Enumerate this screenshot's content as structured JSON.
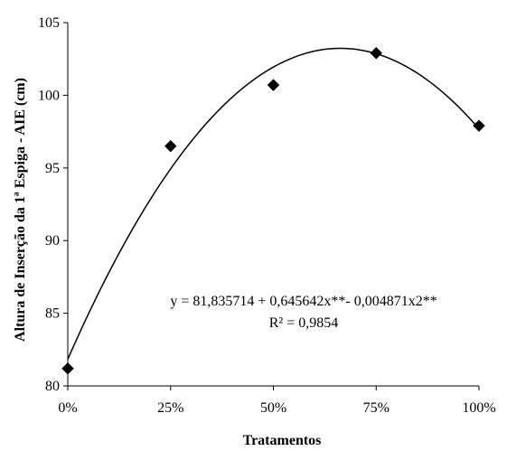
{
  "chart_data": {
    "type": "scatter",
    "xlabel": "Tratamentos",
    "ylabel": "Altura de Inserção da 1ª Espiga - AIE (cm)",
    "x_tick_labels": [
      "0%",
      "25%",
      "50%",
      "75%",
      "100%"
    ],
    "x_ticks": [
      0,
      25,
      50,
      75,
      100
    ],
    "y_ticks": [
      80,
      85,
      90,
      95,
      100,
      105
    ],
    "xlim": [
      0,
      100
    ],
    "ylim": [
      80,
      105
    ],
    "grid": false,
    "points": [
      {
        "x": 0,
        "y": 81.2
      },
      {
        "x": 25,
        "y": 96.5
      },
      {
        "x": 50,
        "y": 100.7
      },
      {
        "x": 75,
        "y": 102.9
      },
      {
        "x": 100,
        "y": 97.9
      }
    ],
    "trendline": {
      "type": "polynomial",
      "coefficients": [
        81.835714,
        0.645642,
        -0.004871
      ],
      "equation_text": "y = 81,835714  + 0,645642x**- 0,004871x2**",
      "r2_text": "R² = 0,9854"
    },
    "marker": "diamond",
    "color": "#000000"
  }
}
